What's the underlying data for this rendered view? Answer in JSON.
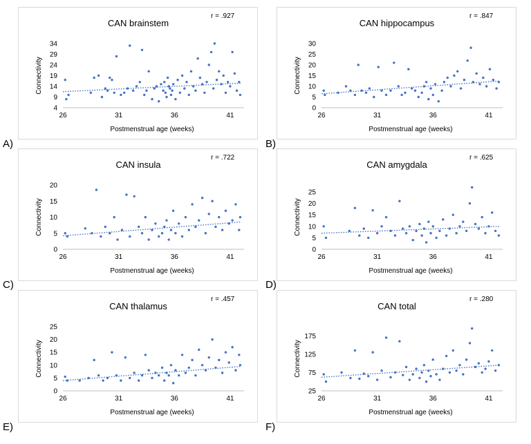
{
  "figure": {
    "x_ticks": [
      "26",
      "31",
      "36",
      "41"
    ],
    "x_label": "Postmenstrual age (weeks)",
    "y_label": "Connectivity"
  },
  "panels": [
    {
      "letter": "A)",
      "title": "CAN brainstem",
      "r_label": "r = .927"
    },
    {
      "letter": "B)",
      "title": "CAN hippocampus",
      "r_label": "r = .847"
    },
    {
      "letter": "C)",
      "title": "CAN insula",
      "r_label": "r = .722"
    },
    {
      "letter": "D)",
      "title": "CAN amygdala",
      "r_label": "r = .625"
    },
    {
      "letter": "E)",
      "title": "CAN thalamus",
      "r_label": "r = .457"
    },
    {
      "letter": "F)",
      "title": "CAN total",
      "r_label": "r = .280"
    }
  ],
  "chart_data": [
    {
      "type": "scatter",
      "title": "CAN brainstem",
      "r": ".927",
      "xlabel": "Postmenstrual age (weeks)",
      "ylabel": "Connectivity",
      "xlim": [
        26,
        42
      ],
      "ylim": [
        4,
        34
      ],
      "y_ticks": [
        4,
        9,
        14,
        19,
        24,
        29,
        34
      ],
      "trend": [
        [
          26,
          11.5
        ],
        [
          42,
          15.5
        ]
      ],
      "points": [
        [
          26.2,
          17
        ],
        [
          26.3,
          8
        ],
        [
          26.5,
          10
        ],
        [
          28.5,
          11
        ],
        [
          28.8,
          18
        ],
        [
          29.2,
          19
        ],
        [
          29.5,
          9
        ],
        [
          29.8,
          13
        ],
        [
          30,
          12
        ],
        [
          30.2,
          18
        ],
        [
          30.4,
          17
        ],
        [
          30.6,
          11
        ],
        [
          30.8,
          28
        ],
        [
          31.2,
          10
        ],
        [
          31.5,
          11
        ],
        [
          31.8,
          13
        ],
        [
          32,
          33
        ],
        [
          32.3,
          12
        ],
        [
          32.6,
          14
        ],
        [
          32.9,
          16
        ],
        [
          33.1,
          31
        ],
        [
          33.3,
          10
        ],
        [
          33.5,
          12
        ],
        [
          33.7,
          21
        ],
        [
          34,
          8
        ],
        [
          34.2,
          13
        ],
        [
          34.4,
          14
        ],
        [
          34.6,
          7
        ],
        [
          34.8,
          15
        ],
        [
          35,
          12
        ],
        [
          35.1,
          16
        ],
        [
          35.2,
          11
        ],
        [
          35.3,
          9
        ],
        [
          35.4,
          18
        ],
        [
          35.5,
          14
        ],
        [
          35.6,
          13
        ],
        [
          35.7,
          10
        ],
        [
          35.8,
          12
        ],
        [
          35.9,
          15
        ],
        [
          36.1,
          8
        ],
        [
          36.3,
          17
        ],
        [
          36.5,
          11
        ],
        [
          36.7,
          19
        ],
        [
          36.9,
          13
        ],
        [
          37.1,
          16
        ],
        [
          37.3,
          10
        ],
        [
          37.5,
          21
        ],
        [
          37.7,
          14
        ],
        [
          37.9,
          12
        ],
        [
          38.1,
          27
        ],
        [
          38.3,
          18
        ],
        [
          38.5,
          15
        ],
        [
          38.7,
          11
        ],
        [
          38.9,
          16
        ],
        [
          39.1,
          24
        ],
        [
          39.3,
          30
        ],
        [
          39.5,
          13
        ],
        [
          39.6,
          34
        ],
        [
          39.8,
          17
        ],
        [
          40,
          21
        ],
        [
          40.2,
          15
        ],
        [
          40.4,
          19
        ],
        [
          40.6,
          11
        ],
        [
          40.8,
          16
        ],
        [
          41,
          14
        ],
        [
          41.2,
          30
        ],
        [
          41.4,
          20
        ],
        [
          41.6,
          12
        ],
        [
          41.8,
          16
        ],
        [
          41.9,
          10
        ]
      ]
    },
    {
      "type": "scatter",
      "title": "CAN hippocampus",
      "r": ".847",
      "xlabel": "Postmenstrual age (weeks)",
      "ylabel": "Connectivity",
      "xlim": [
        26,
        42
      ],
      "ylim": [
        0,
        30
      ],
      "y_ticks": [
        0,
        5,
        10,
        15,
        20,
        25,
        30
      ],
      "trend": [
        [
          26,
          6.5
        ],
        [
          42,
          12.5
        ]
      ],
      "points": [
        [
          26.2,
          8
        ],
        [
          26.3,
          6
        ],
        [
          27.5,
          7
        ],
        [
          28.2,
          10
        ],
        [
          28.6,
          8
        ],
        [
          29,
          6
        ],
        [
          29.3,
          20
        ],
        [
          29.6,
          8
        ],
        [
          30,
          7
        ],
        [
          30.3,
          9
        ],
        [
          30.7,
          5
        ],
        [
          31.1,
          19
        ],
        [
          31.4,
          8
        ],
        [
          31.8,
          6
        ],
        [
          32.2,
          8
        ],
        [
          32.5,
          21
        ],
        [
          32.9,
          10
        ],
        [
          33.2,
          6
        ],
        [
          33.5,
          7
        ],
        [
          33.8,
          18
        ],
        [
          34.1,
          9
        ],
        [
          34.4,
          8
        ],
        [
          34.7,
          5
        ],
        [
          35,
          7
        ],
        [
          35.2,
          10
        ],
        [
          35.4,
          12
        ],
        [
          35.6,
          4
        ],
        [
          35.8,
          9
        ],
        [
          36,
          6
        ],
        [
          36.2,
          11
        ],
        [
          36.5,
          3
        ],
        [
          36.8,
          8
        ],
        [
          37,
          12
        ],
        [
          37.3,
          14
        ],
        [
          37.6,
          10
        ],
        [
          37.9,
          15
        ],
        [
          38.2,
          17
        ],
        [
          38.5,
          9
        ],
        [
          38.8,
          13
        ],
        [
          39.1,
          22
        ],
        [
          39.4,
          28
        ],
        [
          39.6,
          12
        ],
        [
          39.9,
          16
        ],
        [
          40.2,
          11
        ],
        [
          40.5,
          14
        ],
        [
          40.8,
          10
        ],
        [
          41.1,
          18
        ],
        [
          41.4,
          13
        ],
        [
          41.7,
          9
        ],
        [
          41.9,
          12
        ]
      ]
    },
    {
      "type": "scatter",
      "title": "CAN insula",
      "r": ".722",
      "xlabel": "Postmenstrual age (weeks)",
      "ylabel": "Connectivity",
      "xlim": [
        26,
        42
      ],
      "ylim": [
        0,
        20
      ],
      "y_ticks": [
        0,
        5,
        10,
        15,
        20
      ],
      "trend": [
        [
          26,
          4.2
        ],
        [
          42,
          8.5
        ]
      ],
      "points": [
        [
          26.2,
          5
        ],
        [
          26.4,
          4
        ],
        [
          28,
          6.5
        ],
        [
          28.6,
          5
        ],
        [
          29,
          18.5
        ],
        [
          29.4,
          4
        ],
        [
          29.8,
          7
        ],
        [
          30.2,
          5
        ],
        [
          30.6,
          10
        ],
        [
          30.9,
          3
        ],
        [
          31.3,
          6
        ],
        [
          31.7,
          17
        ],
        [
          32,
          4
        ],
        [
          32.4,
          16.5
        ],
        [
          32.8,
          7
        ],
        [
          33.1,
          5
        ],
        [
          33.4,
          10
        ],
        [
          33.7,
          3
        ],
        [
          34,
          6
        ],
        [
          34.3,
          8
        ],
        [
          34.6,
          4
        ],
        [
          34.9,
          5
        ],
        [
          35.1,
          7
        ],
        [
          35.3,
          9
        ],
        [
          35.5,
          3
        ],
        [
          35.7,
          6
        ],
        [
          35.9,
          12
        ],
        [
          36.1,
          5
        ],
        [
          36.4,
          8
        ],
        [
          36.7,
          4
        ],
        [
          37,
          10
        ],
        [
          37.3,
          6
        ],
        [
          37.6,
          14
        ],
        [
          37.9,
          7
        ],
        [
          38.2,
          9
        ],
        [
          38.5,
          16
        ],
        [
          38.8,
          5
        ],
        [
          39.1,
          11
        ],
        [
          39.4,
          15
        ],
        [
          39.7,
          7
        ],
        [
          40,
          10
        ],
        [
          40.3,
          6
        ],
        [
          40.6,
          12
        ],
        [
          40.9,
          8
        ],
        [
          41.2,
          9
        ],
        [
          41.5,
          14
        ],
        [
          41.8,
          6
        ],
        [
          41.9,
          10
        ]
      ]
    },
    {
      "type": "scatter",
      "title": "CAN amygdala",
      "r": ".625",
      "xlabel": "Postmenstrual age (weeks)",
      "ylabel": "Connectivity",
      "xlim": [
        26,
        42
      ],
      "ylim": [
        0,
        28
      ],
      "y_ticks": [
        0,
        5,
        10,
        15,
        20,
        25
      ],
      "trend": [
        [
          26,
          7
        ],
        [
          42,
          10
        ]
      ],
      "points": [
        [
          26.2,
          10
        ],
        [
          26.4,
          5
        ],
        [
          28.5,
          8
        ],
        [
          29,
          18
        ],
        [
          29.4,
          6
        ],
        [
          29.8,
          9
        ],
        [
          30.2,
          5
        ],
        [
          30.6,
          17
        ],
        [
          31,
          7
        ],
        [
          31.4,
          10
        ],
        [
          31.8,
          14
        ],
        [
          32.2,
          8
        ],
        [
          32.6,
          6
        ],
        [
          33,
          21
        ],
        [
          33.3,
          9
        ],
        [
          33.6,
          7
        ],
        [
          33.9,
          10
        ],
        [
          34.2,
          4
        ],
        [
          34.5,
          8
        ],
        [
          34.8,
          11
        ],
        [
          35,
          6
        ],
        [
          35.2,
          9
        ],
        [
          35.4,
          3
        ],
        [
          35.6,
          12
        ],
        [
          35.8,
          7
        ],
        [
          36,
          10
        ],
        [
          36.3,
          5
        ],
        [
          36.6,
          8
        ],
        [
          36.9,
          13
        ],
        [
          37.2,
          6
        ],
        [
          37.5,
          9
        ],
        [
          37.8,
          15
        ],
        [
          38.1,
          7
        ],
        [
          38.4,
          10
        ],
        [
          38.7,
          12
        ],
        [
          39,
          8
        ],
        [
          39.3,
          20
        ],
        [
          39.5,
          27
        ],
        [
          39.8,
          11
        ],
        [
          40.1,
          9
        ],
        [
          40.4,
          14
        ],
        [
          40.7,
          7
        ],
        [
          41,
          10
        ],
        [
          41.3,
          16
        ],
        [
          41.6,
          8
        ],
        [
          41.9,
          6
        ]
      ]
    },
    {
      "type": "scatter",
      "title": "CAN thalamus",
      "r": ".457",
      "xlabel": "Postmenstrual age (weeks)",
      "ylabel": "Connectivity",
      "xlim": [
        26,
        42
      ],
      "ylim": [
        0,
        25
      ],
      "y_ticks": [
        0,
        5,
        10,
        15,
        20,
        25
      ],
      "trend": [
        [
          26,
          4
        ],
        [
          42,
          9.5
        ]
      ],
      "points": [
        [
          26.2,
          5.5
        ],
        [
          26.4,
          4
        ],
        [
          27.5,
          4
        ],
        [
          28.3,
          5
        ],
        [
          28.8,
          12
        ],
        [
          29.2,
          6
        ],
        [
          29.6,
          4
        ],
        [
          30,
          5
        ],
        [
          30.4,
          15
        ],
        [
          30.8,
          6
        ],
        [
          31.2,
          4
        ],
        [
          31.6,
          13
        ],
        [
          32,
          5
        ],
        [
          32.4,
          7
        ],
        [
          32.8,
          4
        ],
        [
          33.1,
          6
        ],
        [
          33.4,
          14
        ],
        [
          33.7,
          8
        ],
        [
          34,
          5
        ],
        [
          34.3,
          7
        ],
        [
          34.6,
          6
        ],
        [
          34.9,
          9
        ],
        [
          35.1,
          4
        ],
        [
          35.3,
          7
        ],
        [
          35.5,
          6
        ],
        [
          35.7,
          10
        ],
        [
          35.9,
          3
        ],
        [
          36.1,
          8
        ],
        [
          36.4,
          6
        ],
        [
          36.7,
          14
        ],
        [
          37,
          7
        ],
        [
          37.3,
          9
        ],
        [
          37.6,
          12
        ],
        [
          37.9,
          6
        ],
        [
          38.2,
          16
        ],
        [
          38.5,
          10
        ],
        [
          38.8,
          8
        ],
        [
          39.1,
          13
        ],
        [
          39.4,
          20
        ],
        [
          39.7,
          9
        ],
        [
          40,
          12
        ],
        [
          40.3,
          7
        ],
        [
          40.6,
          15
        ],
        [
          40.9,
          11
        ],
        [
          41.2,
          17
        ],
        [
          41.5,
          8
        ],
        [
          41.8,
          14
        ],
        [
          41.9,
          10
        ]
      ]
    },
    {
      "type": "scatter",
      "title": "CAN total",
      "r": ".280",
      "xlabel": "Postmenstrual age (weeks)",
      "ylabel": "Connectivity",
      "xlim": [
        26,
        42
      ],
      "ylim": [
        25,
        200
      ],
      "y_ticks": [
        25,
        75,
        125,
        175
      ],
      "trend": [
        [
          26,
          62
        ],
        [
          42,
          95
        ]
      ],
      "points": [
        [
          26.2,
          70
        ],
        [
          26.4,
          50
        ],
        [
          27.8,
          75
        ],
        [
          28.6,
          60
        ],
        [
          29,
          135
        ],
        [
          29.4,
          58
        ],
        [
          29.8,
          72
        ],
        [
          30.2,
          65
        ],
        [
          30.6,
          130
        ],
        [
          31,
          55
        ],
        [
          31.4,
          80
        ],
        [
          31.8,
          170
        ],
        [
          32.2,
          62
        ],
        [
          32.6,
          75
        ],
        [
          33,
          160
        ],
        [
          33.3,
          68
        ],
        [
          33.6,
          90
        ],
        [
          33.9,
          55
        ],
        [
          34.2,
          70
        ],
        [
          34.5,
          85
        ],
        [
          34.8,
          60
        ],
        [
          35,
          75
        ],
        [
          35.2,
          95
        ],
        [
          35.4,
          50
        ],
        [
          35.6,
          80
        ],
        [
          35.8,
          65
        ],
        [
          36,
          110
        ],
        [
          36.3,
          70
        ],
        [
          36.6,
          55
        ],
        [
          36.9,
          85
        ],
        [
          37.2,
          120
        ],
        [
          37.5,
          75
        ],
        [
          37.8,
          135
        ],
        [
          38.1,
          80
        ],
        [
          38.4,
          95
        ],
        [
          38.7,
          70
        ],
        [
          39,
          110
        ],
        [
          39.3,
          155
        ],
        [
          39.5,
          195
        ],
        [
          39.8,
          90
        ],
        [
          40.1,
          100
        ],
        [
          40.4,
          75
        ],
        [
          40.7,
          85
        ],
        [
          41,
          105
        ],
        [
          41.3,
          135
        ],
        [
          41.6,
          80
        ],
        [
          41.9,
          95
        ]
      ]
    }
  ]
}
